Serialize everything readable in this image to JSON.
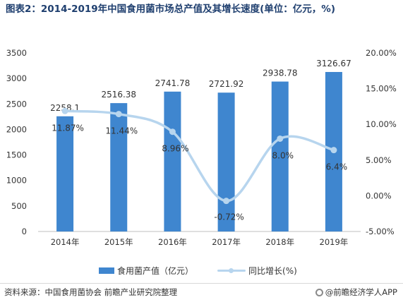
{
  "title": "图表2：2014-2019年中国食用菌市场总产值及其增长速度(单位：亿元，%)",
  "chart_data": {
    "type": "bar",
    "categories": [
      "2014年",
      "2015年",
      "2016年",
      "2017年",
      "2018年",
      "2019年"
    ],
    "series": [
      {
        "name": "食用菌产值（亿元）",
        "type": "bar",
        "axis": "left",
        "values": [
          2258.1,
          2516.38,
          2741.78,
          2721.92,
          2938.78,
          3126.67
        ],
        "labels": [
          "2258.1",
          "2516.38",
          "2741.78",
          "2721.92",
          "2938.78",
          "3126.67"
        ],
        "color": "#3f86cf"
      },
      {
        "name": "同比增长(%)",
        "type": "line",
        "axis": "right",
        "values": [
          11.87,
          11.44,
          8.96,
          -0.72,
          8.0,
          6.4
        ],
        "labels": [
          "11.87%",
          "11.44%",
          "8.96%",
          "-0.72%",
          "8.0%",
          "6.4%"
        ],
        "color": "#b7d5ee"
      }
    ],
    "y_left": {
      "min": 0,
      "max": 3500,
      "ticks": [
        "0",
        "500",
        "1000",
        "1500",
        "2000",
        "2500",
        "3000",
        "3500"
      ]
    },
    "y_right": {
      "min": -5,
      "max": 20,
      "ticks": [
        "-5.00%",
        "0.00%",
        "5.00%",
        "10.00%",
        "15.00%",
        "20.00%"
      ]
    },
    "grid": false,
    "legend_position": "bottom"
  },
  "footer": {
    "source": "资料来源：中国食用菌协会 前瞻产业研究院整理",
    "brand": "@前瞻经济学人APP"
  }
}
